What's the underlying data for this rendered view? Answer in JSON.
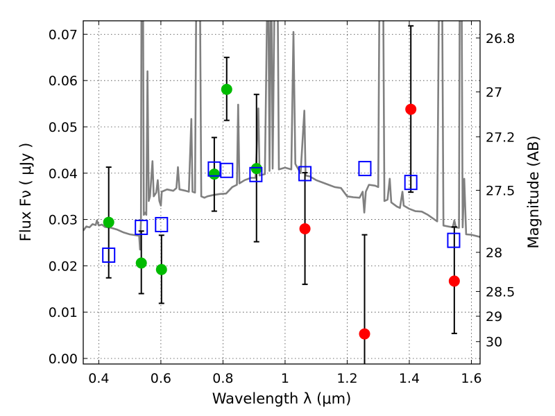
{
  "chart_data": {
    "type": "scatter",
    "title": "",
    "xlabel": "Wavelength  λ (μm)",
    "ylabel": "Flux  Fν  ( μJy )",
    "ylabel_right": "Magnitude (AB)",
    "xlim": [
      0.35,
      1.628
    ],
    "ylim": [
      -0.0012,
      0.0729
    ],
    "grid": true,
    "x_ticks": [
      "0.4",
      "0.6",
      "0.8",
      "1",
      "1.2",
      "1.4",
      "1.6"
    ],
    "x_tick_values": [
      0.4,
      0.6,
      0.8,
      1.0,
      1.2,
      1.4,
      1.6
    ],
    "y_ticks": [
      "0.00",
      "0.01",
      "0.02",
      "0.03",
      "0.04",
      "0.05",
      "0.06",
      "0.07"
    ],
    "y_tick_values": [
      0,
      0.01,
      0.02,
      0.03,
      0.04,
      0.05,
      0.06,
      0.07
    ],
    "right_ticks": [
      "26.8",
      "27",
      "27.2",
      "27.5",
      "28",
      "28.5",
      "29",
      "30"
    ],
    "right_tick_values": [
      26.8,
      27,
      27.2,
      27.5,
      28,
      28.5,
      29,
      30
    ],
    "colors": {
      "spectrum": "#808080",
      "green": "#00bb00",
      "red": "#ff0000",
      "model": "#0000ff",
      "errorbar": "#000000"
    },
    "series": [
      {
        "name": "spectrum",
        "kind": "line",
        "points": [
          [
            0.35,
            0.0276
          ],
          [
            0.36,
            0.0285
          ],
          [
            0.37,
            0.0283
          ],
          [
            0.38,
            0.029
          ],
          [
            0.39,
            0.0288
          ],
          [
            0.394,
            0.0298
          ],
          [
            0.4,
            0.0287
          ],
          [
            0.41,
            0.0289
          ],
          [
            0.42,
            0.0284
          ],
          [
            0.44,
            0.0282
          ],
          [
            0.46,
            0.0278
          ],
          [
            0.48,
            0.0272
          ],
          [
            0.5,
            0.0268
          ],
          [
            0.52,
            0.0266
          ],
          [
            0.53,
            0.0265
          ],
          [
            0.533,
            0.0235
          ],
          [
            0.536,
            0.03
          ],
          [
            0.538,
            0.09
          ],
          [
            0.542,
            0.09
          ],
          [
            0.545,
            0.031
          ],
          [
            0.55,
            0.0315
          ],
          [
            0.553,
            0.031
          ],
          [
            0.557,
            0.062
          ],
          [
            0.561,
            0.034
          ],
          [
            0.565,
            0.035
          ],
          [
            0.573,
            0.0426
          ],
          [
            0.577,
            0.035
          ],
          [
            0.585,
            0.0358
          ],
          [
            0.59,
            0.0385
          ],
          [
            0.595,
            0.034
          ],
          [
            0.6,
            0.033
          ],
          [
            0.603,
            0.036
          ],
          [
            0.62,
            0.0365
          ],
          [
            0.64,
            0.0362
          ],
          [
            0.65,
            0.0368
          ],
          [
            0.655,
            0.0413
          ],
          [
            0.66,
            0.0365
          ],
          [
            0.68,
            0.0362
          ],
          [
            0.69,
            0.036
          ],
          [
            0.698,
            0.0517
          ],
          [
            0.702,
            0.036
          ],
          [
            0.71,
            0.0358
          ],
          [
            0.715,
            0.09
          ],
          [
            0.725,
            0.09
          ],
          [
            0.73,
            0.035
          ],
          [
            0.74,
            0.0347
          ],
          [
            0.75,
            0.035
          ],
          [
            0.77,
            0.0353
          ],
          [
            0.79,
            0.0355
          ],
          [
            0.81,
            0.0356
          ],
          [
            0.83,
            0.037
          ],
          [
            0.845,
            0.0375
          ],
          [
            0.849,
            0.0548
          ],
          [
            0.853,
            0.0378
          ],
          [
            0.87,
            0.0385
          ],
          [
            0.89,
            0.039
          ],
          [
            0.905,
            0.039
          ],
          [
            0.914,
            0.054
          ],
          [
            0.918,
            0.0395
          ],
          [
            0.935,
            0.0398
          ],
          [
            0.945,
            0.09
          ],
          [
            0.95,
            0.0405
          ],
          [
            0.955,
            0.09
          ],
          [
            0.96,
            0.041
          ],
          [
            0.968,
            0.09
          ],
          [
            0.975,
            0.09
          ],
          [
            0.98,
            0.0408
          ],
          [
            1.0,
            0.0412
          ],
          [
            1.02,
            0.0408
          ],
          [
            1.027,
            0.0705
          ],
          [
            1.033,
            0.042
          ],
          [
            1.05,
            0.04
          ],
          [
            1.062,
            0.0535
          ],
          [
            1.066,
            0.0395
          ],
          [
            1.08,
            0.0393
          ],
          [
            1.1,
            0.0385
          ],
          [
            1.12,
            0.038
          ],
          [
            1.14,
            0.0375
          ],
          [
            1.16,
            0.037
          ],
          [
            1.18,
            0.0368
          ],
          [
            1.2,
            0.035
          ],
          [
            1.22,
            0.0348
          ],
          [
            1.24,
            0.0347
          ],
          [
            1.25,
            0.036
          ],
          [
            1.255,
            0.0315
          ],
          [
            1.26,
            0.036
          ],
          [
            1.27,
            0.0375
          ],
          [
            1.29,
            0.0373
          ],
          [
            1.3,
            0.037
          ],
          [
            1.305,
            0.09
          ],
          [
            1.315,
            0.09
          ],
          [
            1.32,
            0.034
          ],
          [
            1.33,
            0.0343
          ],
          [
            1.337,
            0.0388
          ],
          [
            1.342,
            0.0337
          ],
          [
            1.36,
            0.0328
          ],
          [
            1.37,
            0.0325
          ],
          [
            1.378,
            0.036
          ],
          [
            1.382,
            0.033
          ],
          [
            1.4,
            0.0323
          ],
          [
            1.42,
            0.0318
          ],
          [
            1.44,
            0.0317
          ],
          [
            1.46,
            0.031
          ],
          [
            1.49,
            0.0296
          ],
          [
            1.497,
            0.09
          ],
          [
            1.505,
            0.09
          ],
          [
            1.51,
            0.0287
          ],
          [
            1.54,
            0.0283
          ],
          [
            1.545,
            0.0298
          ],
          [
            1.55,
            0.0283
          ],
          [
            1.56,
            0.0282
          ],
          [
            1.563,
            0.09
          ],
          [
            1.568,
            0.09
          ],
          [
            1.572,
            0.0283
          ],
          [
            1.577,
            0.0388
          ],
          [
            1.583,
            0.0268
          ],
          [
            1.6,
            0.0267
          ],
          [
            1.63,
            0.0262
          ]
        ]
      },
      {
        "name": "model-photometry",
        "kind": "open-square",
        "points": [
          [
            0.432,
            0.0223
          ],
          [
            0.537,
            0.0283
          ],
          [
            0.602,
            0.0289
          ],
          [
            0.772,
            0.0409
          ],
          [
            0.812,
            0.0406
          ],
          [
            0.906,
            0.0397
          ],
          [
            1.064,
            0.0399
          ],
          [
            1.257,
            0.041
          ],
          [
            1.405,
            0.038
          ],
          [
            1.543,
            0.0255
          ]
        ]
      },
      {
        "name": "detections-green",
        "kind": "circle-errorbar",
        "points": [
          [
            0.432,
            0.0294,
            0.0174,
            0.0413
          ],
          [
            0.537,
            0.0206,
            0.014,
            0.0275
          ],
          [
            0.602,
            0.0192,
            0.0119,
            0.0266
          ],
          [
            0.772,
            0.0398,
            0.0318,
            0.0477
          ],
          [
            0.812,
            0.0581,
            0.0514,
            0.065
          ],
          [
            0.908,
            0.041,
            0.0252,
            0.057
          ]
        ]
      },
      {
        "name": "detections-red",
        "kind": "circle-errorbar",
        "points": [
          [
            1.064,
            0.028,
            0.016,
            0.0401
          ],
          [
            1.256,
            0.0053,
            -0.005,
            0.0267
          ],
          [
            1.405,
            0.0538,
            0.0359,
            0.0718
          ],
          [
            1.545,
            0.0167,
            0.0054,
            0.0284
          ]
        ]
      }
    ]
  }
}
